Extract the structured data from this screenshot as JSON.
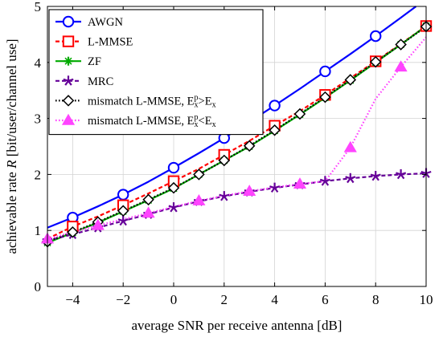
{
  "chart_data": {
    "type": "line",
    "xlabel": "average SNR per receive antenna [dB]",
    "ylabel_parts": [
      "achievable rate ",
      "R",
      " [bit/user/channel use]"
    ],
    "xlim": [
      -5,
      10
    ],
    "ylim": [
      0,
      5
    ],
    "xticks": [
      -4,
      -2,
      0,
      2,
      4,
      6,
      8,
      10
    ],
    "yticks": [
      0,
      1,
      2,
      3,
      4,
      5
    ],
    "grid": true,
    "legend_position": "top-left",
    "series": [
      {
        "name": "AWGN",
        "color": "#0000ff",
        "line_style": "solid",
        "marker": "circle",
        "x": [
          -5,
          -4,
          -3,
          -2,
          -1,
          0,
          1,
          2,
          3,
          4,
          5,
          6,
          7,
          8,
          9,
          9.6
        ],
        "y": [
          1.05,
          1.23,
          1.43,
          1.64,
          1.87,
          2.12,
          2.38,
          2.65,
          2.94,
          3.23,
          3.53,
          3.84,
          4.15,
          4.47,
          4.8,
          5.0
        ],
        "marker_x": [
          -4,
          -2,
          0,
          2,
          4,
          6,
          8
        ]
      },
      {
        "name": "L-MMSE",
        "color": "#ff0000",
        "line_style": "dashed",
        "marker": "square",
        "x": [
          -5,
          -4,
          -3,
          -2,
          -1,
          0,
          1,
          2,
          3,
          4,
          5,
          6,
          7,
          8,
          9,
          10
        ],
        "y": [
          0.85,
          1.07,
          1.25,
          1.45,
          1.66,
          1.88,
          2.1,
          2.35,
          2.6,
          2.87,
          3.13,
          3.42,
          3.72,
          4.02,
          4.33,
          4.65
        ],
        "marker_x": [
          -4,
          -2,
          0,
          2,
          4,
          6,
          8,
          10
        ]
      },
      {
        "name": "ZF",
        "color": "#00aa00",
        "line_style": "solid",
        "marker": "plus-star",
        "x": [
          -5,
          -4,
          -3,
          -2,
          -1,
          0,
          1,
          2,
          3,
          4,
          5,
          6,
          7,
          8,
          9,
          10
        ],
        "y": [
          0.78,
          0.96,
          1.14,
          1.34,
          1.54,
          1.75,
          2.0,
          2.25,
          2.5,
          2.78,
          3.07,
          3.37,
          3.68,
          4.0,
          4.32,
          4.65
        ],
        "marker_x": [
          -5,
          -4,
          -3,
          -2,
          -1,
          0,
          1,
          2,
          3,
          4,
          5,
          6,
          7,
          8,
          9,
          10
        ]
      },
      {
        "name": "MRC",
        "color": "#660099",
        "line_style": "dashed",
        "marker": "star",
        "x": [
          -5,
          -4,
          -3,
          -2,
          -1,
          0,
          1,
          2,
          3,
          4,
          5,
          6,
          7,
          8,
          9,
          10
        ],
        "y": [
          0.82,
          0.93,
          1.05,
          1.17,
          1.29,
          1.41,
          1.52,
          1.61,
          1.69,
          1.76,
          1.82,
          1.88,
          1.93,
          1.97,
          2.0,
          2.02
        ],
        "marker_x": [
          -5,
          -4,
          -3,
          -2,
          -1,
          0,
          1,
          2,
          3,
          4,
          5,
          6,
          7,
          8,
          9,
          10
        ]
      },
      {
        "name_parts": [
          "mismatch L-MMSE, E",
          "x",
          "p",
          ">E",
          "x"
        ],
        "color": "#000000",
        "line_style": "dotted",
        "marker": "diamond",
        "x": [
          -5,
          -4,
          -3,
          -2,
          -1,
          0,
          1,
          2,
          3,
          4,
          5,
          6,
          7,
          8,
          9,
          10
        ],
        "y": [
          0.8,
          0.97,
          1.15,
          1.35,
          1.55,
          1.76,
          2.0,
          2.25,
          2.51,
          2.79,
          3.08,
          3.38,
          3.69,
          4.01,
          4.32,
          4.64
        ],
        "marker_x": [
          -5,
          -4,
          -3,
          -2,
          -1,
          0,
          1,
          2,
          3,
          4,
          5,
          6,
          7,
          8,
          9,
          10
        ]
      },
      {
        "name_parts": [
          "mismatch L-MMSE, E",
          "x",
          "p",
          "<E",
          "x"
        ],
        "color": "#ff44ff",
        "line_style": "dotted",
        "marker": "triangle",
        "x": [
          -5,
          -4,
          -3,
          -2,
          -1,
          0,
          1,
          2,
          3,
          4,
          5,
          6,
          7,
          8,
          9,
          10
        ],
        "y": [
          0.85,
          0.97,
          1.09,
          1.2,
          1.31,
          1.42,
          1.53,
          1.62,
          1.7,
          1.77,
          1.83,
          1.88,
          2.48,
          3.35,
          3.92,
          4.45
        ],
        "marker_x": [
          -5,
          -3,
          -1,
          1,
          3,
          5,
          7,
          9
        ]
      }
    ]
  }
}
